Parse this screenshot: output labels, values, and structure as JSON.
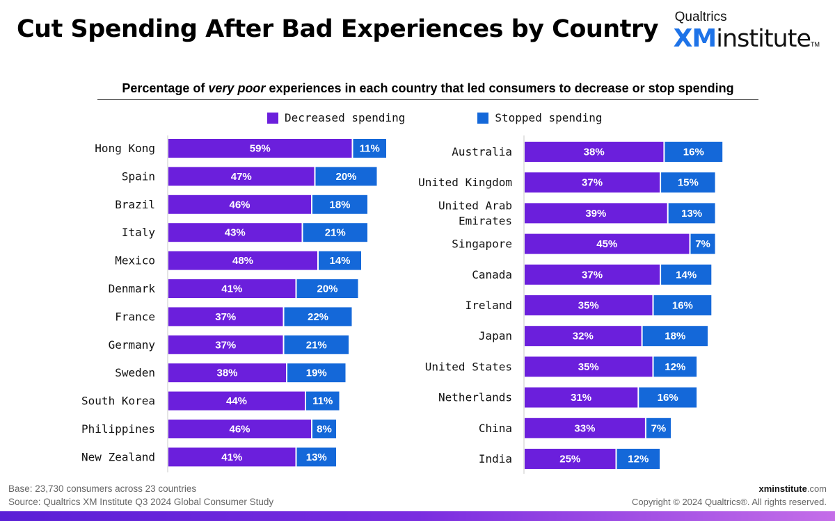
{
  "title": "Cut Spending After Bad Experiences by Country",
  "logo": {
    "top": "Qualtrics",
    "xm": "XM",
    "institute": "institute",
    "tm": "TM"
  },
  "subtitle": {
    "before": "Percentage of ",
    "emphasis": "very poor",
    "after": " experiences in each country that led consumers to decrease or stop spending"
  },
  "colors": {
    "decreased": "#6b1fdc",
    "stopped": "#1468d9"
  },
  "chart_data": [
    {
      "type": "bar",
      "orientation": "horizontal",
      "stacked": true,
      "title": "Percentage of very poor experiences in each country that led consumers to decrease or stop spending",
      "legend": "top",
      "categories": [
        "Hong Kong",
        "Spain",
        "Brazil",
        "Italy",
        "Mexico",
        "Denmark",
        "France",
        "Germany",
        "Sweden",
        "South Korea",
        "Philippines",
        "New Zealand"
      ],
      "series": [
        {
          "name": "Decreased spending",
          "values": [
            59,
            47,
            46,
            43,
            48,
            41,
            37,
            37,
            38,
            44,
            46,
            41
          ]
        },
        {
          "name": "Stopped spending",
          "values": [
            11,
            20,
            18,
            21,
            14,
            20,
            22,
            21,
            19,
            11,
            8,
            13
          ]
        }
      ],
      "unit": "%"
    },
    {
      "type": "bar",
      "orientation": "horizontal",
      "stacked": true,
      "title": "Percentage of very poor experiences in each country that led consumers to decrease or stop spending",
      "legend": "top",
      "categories": [
        "Australia",
        "United Kingdom",
        "United Arab Emirates",
        "Singapore",
        "Canada",
        "Ireland",
        "Japan",
        "United States",
        "Netherlands",
        "China",
        "India"
      ],
      "series": [
        {
          "name": "Decreased spending",
          "values": [
            38,
            37,
            39,
            45,
            37,
            35,
            32,
            35,
            31,
            33,
            25
          ]
        },
        {
          "name": "Stopped spending",
          "values": [
            16,
            15,
            13,
            7,
            14,
            16,
            18,
            12,
            16,
            7,
            12
          ]
        }
      ],
      "unit": "%"
    }
  ],
  "footer": {
    "base": "Base: 23,730 consumers across 23 countries",
    "source": "Source: Qualtrics XM Institute Q3 2024 Global Consumer Study",
    "site_bold": "xminstitute",
    "site_rest": ".com",
    "copyright": "Copyright © 2024 Qualtrics®. All rights reserved."
  }
}
